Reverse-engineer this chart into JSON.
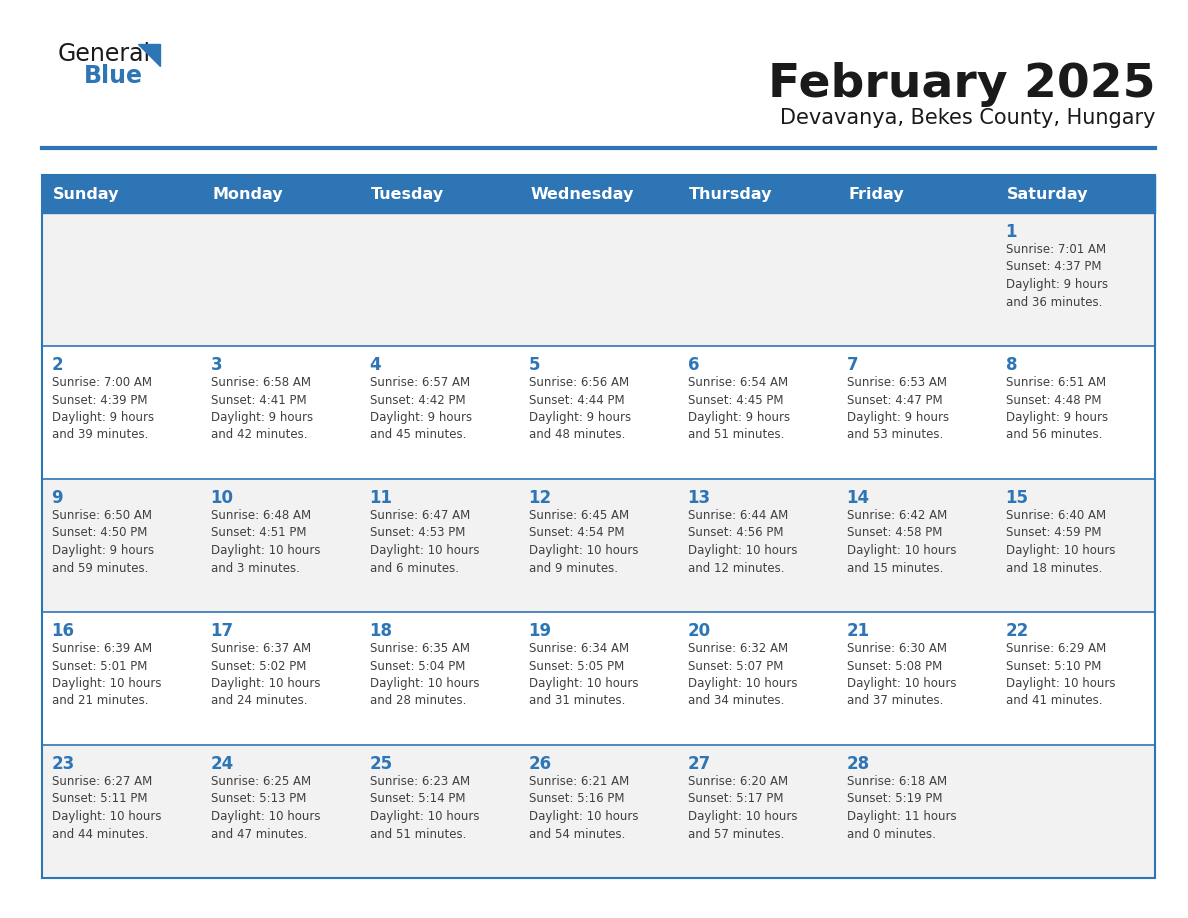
{
  "title": "February 2025",
  "subtitle": "Devavanya, Bekes County, Hungary",
  "days_of_week": [
    "Sunday",
    "Monday",
    "Tuesday",
    "Wednesday",
    "Thursday",
    "Friday",
    "Saturday"
  ],
  "header_bg_color": "#2e75b6",
  "header_text_color": "#ffffff",
  "cell_bg_color": "#f2f2f2",
  "cell_border_color": "#2e75b6",
  "day_number_color": "#2e75b6",
  "info_text_color": "#404040",
  "title_color": "#1a1a1a",
  "subtitle_color": "#1a1a1a",
  "calendar_data": [
    [
      null,
      null,
      null,
      null,
      null,
      null,
      {
        "day": 1,
        "sunrise": "7:01 AM",
        "sunset": "4:37 PM",
        "daylight": "9 hours and 36 minutes."
      }
    ],
    [
      {
        "day": 2,
        "sunrise": "7:00 AM",
        "sunset": "4:39 PM",
        "daylight": "9 hours and 39 minutes."
      },
      {
        "day": 3,
        "sunrise": "6:58 AM",
        "sunset": "4:41 PM",
        "daylight": "9 hours and 42 minutes."
      },
      {
        "day": 4,
        "sunrise": "6:57 AM",
        "sunset": "4:42 PM",
        "daylight": "9 hours and 45 minutes."
      },
      {
        "day": 5,
        "sunrise": "6:56 AM",
        "sunset": "4:44 PM",
        "daylight": "9 hours and 48 minutes."
      },
      {
        "day": 6,
        "sunrise": "6:54 AM",
        "sunset": "4:45 PM",
        "daylight": "9 hours and 51 minutes."
      },
      {
        "day": 7,
        "sunrise": "6:53 AM",
        "sunset": "4:47 PM",
        "daylight": "9 hours and 53 minutes."
      },
      {
        "day": 8,
        "sunrise": "6:51 AM",
        "sunset": "4:48 PM",
        "daylight": "9 hours and 56 minutes."
      }
    ],
    [
      {
        "day": 9,
        "sunrise": "6:50 AM",
        "sunset": "4:50 PM",
        "daylight": "9 hours and 59 minutes."
      },
      {
        "day": 10,
        "sunrise": "6:48 AM",
        "sunset": "4:51 PM",
        "daylight": "10 hours and 3 minutes."
      },
      {
        "day": 11,
        "sunrise": "6:47 AM",
        "sunset": "4:53 PM",
        "daylight": "10 hours and 6 minutes."
      },
      {
        "day": 12,
        "sunrise": "6:45 AM",
        "sunset": "4:54 PM",
        "daylight": "10 hours and 9 minutes."
      },
      {
        "day": 13,
        "sunrise": "6:44 AM",
        "sunset": "4:56 PM",
        "daylight": "10 hours and 12 minutes."
      },
      {
        "day": 14,
        "sunrise": "6:42 AM",
        "sunset": "4:58 PM",
        "daylight": "10 hours and 15 minutes."
      },
      {
        "day": 15,
        "sunrise": "6:40 AM",
        "sunset": "4:59 PM",
        "daylight": "10 hours and 18 minutes."
      }
    ],
    [
      {
        "day": 16,
        "sunrise": "6:39 AM",
        "sunset": "5:01 PM",
        "daylight": "10 hours and 21 minutes."
      },
      {
        "day": 17,
        "sunrise": "6:37 AM",
        "sunset": "5:02 PM",
        "daylight": "10 hours and 24 minutes."
      },
      {
        "day": 18,
        "sunrise": "6:35 AM",
        "sunset": "5:04 PM",
        "daylight": "10 hours and 28 minutes."
      },
      {
        "day": 19,
        "sunrise": "6:34 AM",
        "sunset": "5:05 PM",
        "daylight": "10 hours and 31 minutes."
      },
      {
        "day": 20,
        "sunrise": "6:32 AM",
        "sunset": "5:07 PM",
        "daylight": "10 hours and 34 minutes."
      },
      {
        "day": 21,
        "sunrise": "6:30 AM",
        "sunset": "5:08 PM",
        "daylight": "10 hours and 37 minutes."
      },
      {
        "day": 22,
        "sunrise": "6:29 AM",
        "sunset": "5:10 PM",
        "daylight": "10 hours and 41 minutes."
      }
    ],
    [
      {
        "day": 23,
        "sunrise": "6:27 AM",
        "sunset": "5:11 PM",
        "daylight": "10 hours and 44 minutes."
      },
      {
        "day": 24,
        "sunrise": "6:25 AM",
        "sunset": "5:13 PM",
        "daylight": "10 hours and 47 minutes."
      },
      {
        "day": 25,
        "sunrise": "6:23 AM",
        "sunset": "5:14 PM",
        "daylight": "10 hours and 51 minutes."
      },
      {
        "day": 26,
        "sunrise": "6:21 AM",
        "sunset": "5:16 PM",
        "daylight": "10 hours and 54 minutes."
      },
      {
        "day": 27,
        "sunrise": "6:20 AM",
        "sunset": "5:17 PM",
        "daylight": "10 hours and 57 minutes."
      },
      {
        "day": 28,
        "sunrise": "6:18 AM",
        "sunset": "5:19 PM",
        "daylight": "11 hours and 0 minutes."
      },
      null
    ]
  ]
}
